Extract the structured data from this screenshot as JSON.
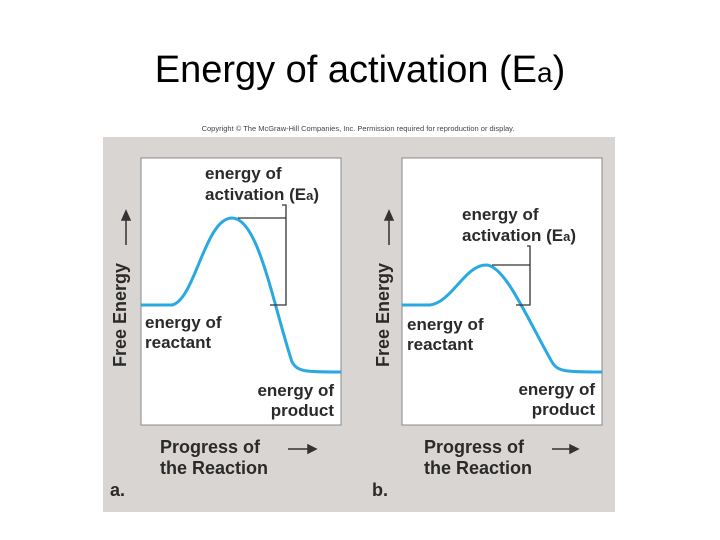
{
  "title": {
    "main": "Energy of activation (E",
    "subscript": "a",
    "close": ")"
  },
  "copyright": "Copyright © The McGraw-Hill Companies, Inc. Permission required for reproduction or display.",
  "panels": [
    {
      "letter": "a.",
      "y_axis": "Free Energy",
      "x_axis": [
        "Progress of",
        "the Reaction"
      ],
      "activation": {
        "line1": "energy of",
        "line2": "activation (E",
        "subscript": "a",
        "close": ")"
      },
      "reactant": [
        "energy of",
        "reactant"
      ],
      "product": [
        "energy of",
        "product"
      ]
    },
    {
      "letter": "b.",
      "y_axis": "Free Energy",
      "x_axis": [
        "Progress of",
        "the Reaction"
      ],
      "activation": {
        "line1": "energy of",
        "line2": "activation (E",
        "subscript": "a",
        "close": ")"
      },
      "reactant": [
        "energy of",
        "reactant"
      ],
      "product": [
        "energy of",
        "product"
      ]
    }
  ]
}
